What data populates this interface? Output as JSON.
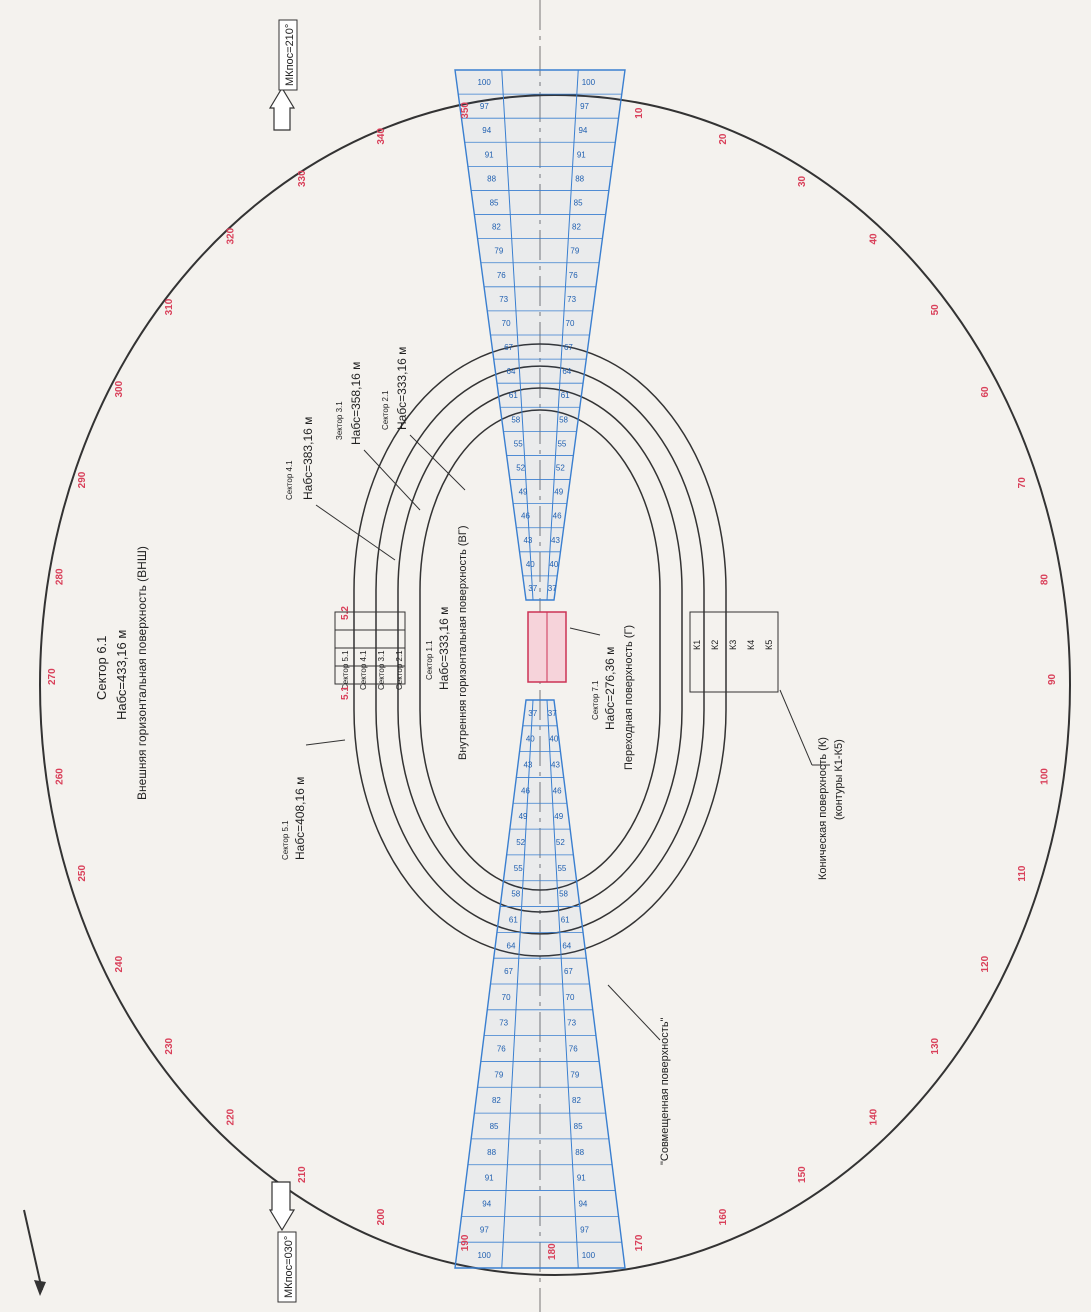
{
  "sectors": {
    "s61": {
      "title": "Сектор 6.1",
      "height": "Набс=433,16 м",
      "surface": "Внешняя горизонтальная поверхность (ВНШ)"
    },
    "s41": {
      "title": "Сектор 4.1",
      "height": "Набс=383,16 м"
    },
    "s31": {
      "title": "Зектор 3.1",
      "height": "Набс=358,16 м"
    },
    "s21": {
      "title": "Сектор 2.1",
      "height": "Набс=333,16 м"
    },
    "s51": {
      "title": "Сектор 5.1",
      "height": "Набс=408,16 м"
    },
    "s11": {
      "title": "Сектор 1.1",
      "height": "Набс=333,16 м",
      "surface": "Внутренняя горизонтальная поверхность (ВГ)"
    },
    "s71": {
      "title": "Сектор 7.1",
      "height": "Набс=276,36 м",
      "surface": "Переходная поверхность (Г)"
    }
  },
  "conical": {
    "line1": "Коническая поверхность (К)",
    "line2": "(контуры К1-К5)"
  },
  "combined_surface": "\"Совмещенная поверхность\"",
  "mk_top": "МКпос=210°",
  "mk_bottom": "МКпос=030°",
  "legend_cells": [
    "Сектор 5.1",
    "Сектор 4.1",
    "Сектор 3.1",
    "Сектор 2.1"
  ],
  "legend_codes_top": [
    "5.1",
    "5.2"
  ],
  "k_contours": [
    "К1",
    "К2",
    "К3",
    "К4",
    "К5"
  ],
  "outer_circle_labels": [
    "10",
    "20",
    "30",
    "40",
    "50",
    "60",
    "70",
    "80",
    "90",
    "100",
    "110",
    "120",
    "130",
    "140",
    "150",
    "160",
    "170",
    "180",
    "190",
    "200",
    "210",
    "220",
    "230",
    "240",
    "250",
    "260",
    "270",
    "280",
    "290",
    "300",
    "310",
    "320",
    "330",
    "340",
    "350"
  ],
  "approach_numbers_top": [
    "100",
    "97",
    "94",
    "91",
    "88",
    "85",
    "82",
    "79",
    "76",
    "73",
    "70",
    "67",
    "64",
    "61",
    "58",
    "55",
    "52",
    "49",
    "46",
    "43",
    "40",
    "37"
  ],
  "approach_numbers_bottom": [
    "37",
    "40",
    "43",
    "46",
    "49",
    "52",
    "55",
    "58",
    "61",
    "64",
    "67",
    "70",
    "73",
    "76",
    "79",
    "82",
    "85",
    "88",
    "91",
    "94",
    "97",
    "100"
  ],
  "colors": {
    "outline": "#333333",
    "approach": "#3a7fd0",
    "marks": "#d9405a",
    "runway": "#cc3355"
  }
}
